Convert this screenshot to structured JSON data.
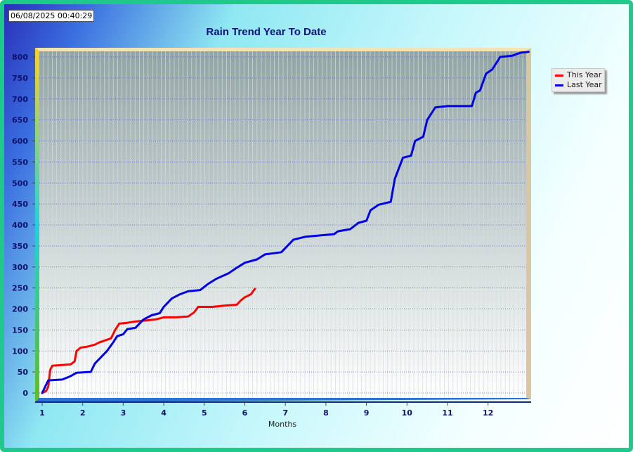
{
  "timestamp": "06/08/2025 00:40:29",
  "colors": {
    "this_year": "#ff0000",
    "last_year": "#0000e6"
  },
  "chart_data": {
    "type": "line",
    "title": "Rain Trend Year To Date",
    "xlabel": "Months",
    "ylabel": "",
    "xlim": [
      1,
      13
    ],
    "ylim": [
      0,
      800
    ],
    "x_ticks": [
      "1",
      "2",
      "3",
      "4",
      "5",
      "6",
      "7",
      "8",
      "9",
      "10",
      "11",
      "12"
    ],
    "y_ticks": [
      0,
      50,
      100,
      150,
      200,
      250,
      300,
      350,
      400,
      450,
      500,
      550,
      600,
      650,
      700,
      750,
      800
    ],
    "grid": true,
    "legend_position": "top-right",
    "series": [
      {
        "name": "This Year",
        "color": "#ff0000",
        "points": [
          [
            1.0,
            0
          ],
          [
            1.1,
            5
          ],
          [
            1.15,
            15
          ],
          [
            1.2,
            55
          ],
          [
            1.25,
            65
          ],
          [
            1.4,
            66
          ],
          [
            1.7,
            68
          ],
          [
            1.8,
            75
          ],
          [
            1.85,
            100
          ],
          [
            1.95,
            108
          ],
          [
            2.1,
            110
          ],
          [
            2.3,
            115
          ],
          [
            2.4,
            120
          ],
          [
            2.55,
            125
          ],
          [
            2.7,
            130
          ],
          [
            2.8,
            150
          ],
          [
            2.9,
            165
          ],
          [
            3.1,
            167
          ],
          [
            3.3,
            170
          ],
          [
            3.5,
            172
          ],
          [
            3.8,
            175
          ],
          [
            4.0,
            180
          ],
          [
            4.3,
            180
          ],
          [
            4.6,
            182
          ],
          [
            4.75,
            192
          ],
          [
            4.85,
            205
          ],
          [
            5.2,
            205
          ],
          [
            5.5,
            208
          ],
          [
            5.8,
            210
          ],
          [
            5.9,
            220
          ],
          [
            6.0,
            228
          ],
          [
            6.15,
            235
          ],
          [
            6.25,
            248
          ]
        ]
      },
      {
        "name": "Last Year",
        "color": "#0000e6",
        "points": [
          [
            1.0,
            0
          ],
          [
            1.1,
            20
          ],
          [
            1.15,
            30
          ],
          [
            1.5,
            32
          ],
          [
            1.7,
            40
          ],
          [
            1.85,
            48
          ],
          [
            2.2,
            50
          ],
          [
            2.3,
            70
          ],
          [
            2.45,
            85
          ],
          [
            2.6,
            100
          ],
          [
            2.75,
            120
          ],
          [
            2.85,
            135
          ],
          [
            3.0,
            140
          ],
          [
            3.1,
            152
          ],
          [
            3.3,
            155
          ],
          [
            3.5,
            175
          ],
          [
            3.7,
            185
          ],
          [
            3.9,
            190
          ],
          [
            4.0,
            205
          ],
          [
            4.2,
            225
          ],
          [
            4.4,
            235
          ],
          [
            4.6,
            242
          ],
          [
            4.9,
            245
          ],
          [
            5.1,
            260
          ],
          [
            5.3,
            272
          ],
          [
            5.6,
            285
          ],
          [
            5.8,
            298
          ],
          [
            6.0,
            310
          ],
          [
            6.3,
            318
          ],
          [
            6.5,
            330
          ],
          [
            6.9,
            335
          ],
          [
            7.2,
            365
          ],
          [
            7.5,
            372
          ],
          [
            8.2,
            378
          ],
          [
            8.3,
            385
          ],
          [
            8.6,
            390
          ],
          [
            8.8,
            405
          ],
          [
            9.0,
            410
          ],
          [
            9.1,
            435
          ],
          [
            9.3,
            448
          ],
          [
            9.6,
            455
          ],
          [
            9.7,
            510
          ],
          [
            9.9,
            560
          ],
          [
            10.1,
            565
          ],
          [
            10.2,
            600
          ],
          [
            10.4,
            610
          ],
          [
            10.5,
            650
          ],
          [
            10.7,
            680
          ],
          [
            11.0,
            683
          ],
          [
            11.6,
            683
          ],
          [
            11.7,
            715
          ],
          [
            11.8,
            720
          ],
          [
            11.95,
            760
          ],
          [
            12.1,
            770
          ],
          [
            12.3,
            800
          ],
          [
            12.6,
            803
          ],
          [
            12.8,
            810
          ],
          [
            13.0,
            812
          ]
        ]
      }
    ]
  }
}
